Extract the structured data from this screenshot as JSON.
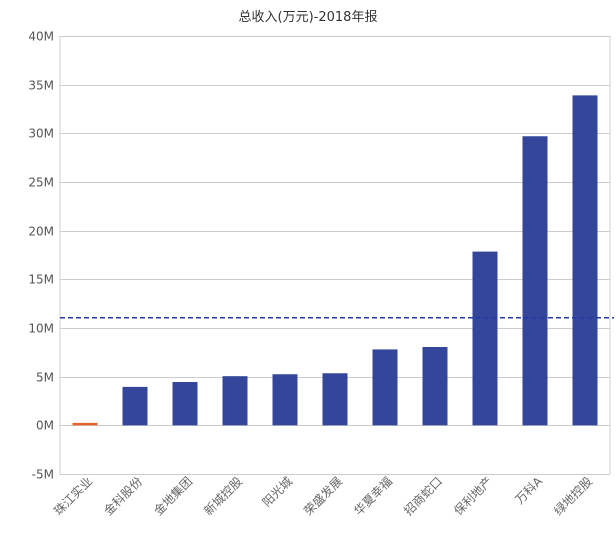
{
  "chart_data": {
    "type": "bar",
    "title": "总收入(万元)-2018年报",
    "xlabel": "",
    "ylabel": "",
    "ylim": [
      -5000000,
      40000000
    ],
    "yticks": [
      -5000000,
      0,
      5000000,
      10000000,
      15000000,
      20000000,
      25000000,
      30000000,
      35000000,
      40000000
    ],
    "ytick_labels": [
      "-5M",
      "0M",
      "5M",
      "10M",
      "15M",
      "20M",
      "25M",
      "30M",
      "35M",
      "40M"
    ],
    "grid": true,
    "categories": [
      "珠江实业",
      "金科股份",
      "金地集团",
      "新城控股",
      "阳光城",
      "荣盛发展",
      "华夏幸福",
      "招商蛇口",
      "保利地产",
      "万科A",
      "绿地控股"
    ],
    "values": [
      250000,
      3950000,
      4450000,
      5050000,
      5250000,
      5350000,
      7800000,
      8050000,
      17850000,
      29700000,
      33900000
    ],
    "highlight_index": 0,
    "average_line": 11050000,
    "colors": {
      "bar": "#34469a",
      "highlight": "#e8632c",
      "average": "#1f3aa6",
      "grid": "#cccccc",
      "axis": "#cfcfcf"
    }
  }
}
